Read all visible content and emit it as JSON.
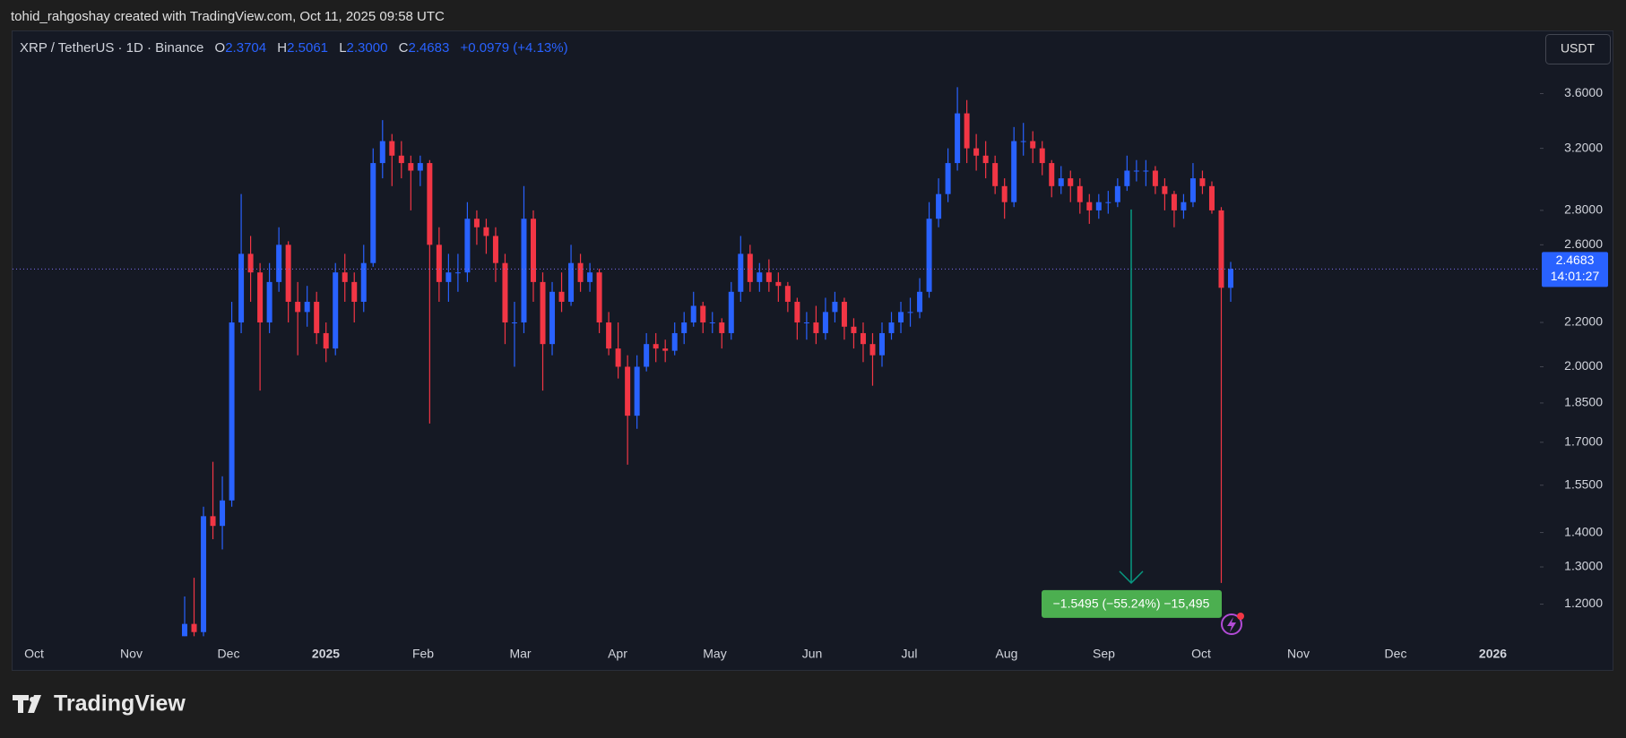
{
  "header": {
    "author_line": "tohid_rahgoshay created with TradingView.com, Oct 11, 2025 09:58 UTC"
  },
  "legend": {
    "symbol": "XRP / TetherUS · 1D · Binance",
    "ohlc": [
      {
        "label": "O",
        "value": "2.3704"
      },
      {
        "label": "H",
        "value": "2.5061"
      },
      {
        "label": "L",
        "value": "2.3000"
      },
      {
        "label": "C",
        "value": "2.4683"
      }
    ],
    "change": "+0.0979 (+4.13%)"
  },
  "currency_button": "USDT",
  "countdown": "14:01:27",
  "footer": {
    "logo": "TradingView"
  },
  "chart_data": {
    "type": "candlestick",
    "log_scale": true,
    "up_color": "#2962ff",
    "down_color": "#f23645",
    "last_price_line": true,
    "x_labels": [
      "Oct",
      "Nov",
      "Dec",
      "2025",
      "Feb",
      "Mar",
      "Apr",
      "May",
      "Jun",
      "Jul",
      "Aug",
      "Sep",
      "Oct",
      "Nov",
      "Dec",
      "2026"
    ],
    "ylim": [
      1.11,
      4.1
    ],
    "yticks": [
      {
        "value": 3.6,
        "label": "3.6000"
      },
      {
        "value": 3.2,
        "label": "3.2000"
      },
      {
        "value": 2.8,
        "label": "2.8000"
      },
      {
        "value": 2.6,
        "label": "2.6000"
      },
      {
        "value": 2.2,
        "label": "2.2000"
      },
      {
        "value": 2,
        "label": "2.0000"
      },
      {
        "value": 1.85,
        "label": "1.8500"
      },
      {
        "value": 1.7,
        "label": "1.7000"
      },
      {
        "value": 1.55,
        "label": "1.5500"
      },
      {
        "value": 1.4,
        "label": "1.4000"
      },
      {
        "value": 1.3,
        "label": "1.3000"
      },
      {
        "value": 1.2,
        "label": "1.2000"
      }
    ],
    "measure": {
      "from": 2.8055,
      "to": 1.256,
      "label": "−1.5495 (−55.24%) −15,495",
      "color": "#089981",
      "label_color": "#4caf50"
    },
    "candles": [
      [
        1.12,
        1.22,
        1.12,
        1.15
      ],
      [
        1.15,
        1.27,
        1.12,
        1.13
      ],
      [
        1.13,
        1.48,
        1.12,
        1.45
      ],
      [
        1.45,
        1.63,
        1.38,
        1.42
      ],
      [
        1.42,
        1.58,
        1.35,
        1.5
      ],
      [
        1.5,
        2.3,
        1.48,
        2.2
      ],
      [
        2.2,
        2.9,
        2.15,
        2.55
      ],
      [
        2.55,
        2.65,
        2.3,
        2.45
      ],
      [
        2.45,
        2.5,
        1.9,
        2.2
      ],
      [
        2.2,
        2.5,
        2.15,
        2.4
      ],
      [
        2.4,
        2.7,
        2.35,
        2.6
      ],
      [
        2.6,
        2.62,
        2.2,
        2.3
      ],
      [
        2.3,
        2.4,
        2.05,
        2.25
      ],
      [
        2.25,
        2.38,
        2.18,
        2.3
      ],
      [
        2.3,
        2.35,
        2.1,
        2.15
      ],
      [
        2.15,
        2.2,
        2.02,
        2.08
      ],
      [
        2.08,
        2.5,
        2.05,
        2.45
      ],
      [
        2.45,
        2.55,
        2.3,
        2.4
      ],
      [
        2.4,
        2.45,
        2.2,
        2.3
      ],
      [
        2.3,
        2.6,
        2.25,
        2.5
      ],
      [
        2.5,
        3.2,
        2.48,
        3.1
      ],
      [
        3.1,
        3.4,
        3.0,
        3.25
      ],
      [
        3.25,
        3.3,
        2.95,
        3.15
      ],
      [
        3.15,
        3.25,
        3.0,
        3.1
      ],
      [
        3.1,
        3.15,
        2.8,
        3.05
      ],
      [
        3.05,
        3.15,
        2.95,
        3.1
      ],
      [
        3.1,
        3.12,
        1.77,
        2.6
      ],
      [
        2.6,
        2.7,
        2.3,
        2.4
      ],
      [
        2.4,
        2.55,
        2.3,
        2.45
      ],
      [
        2.45,
        2.55,
        2.35,
        2.45
      ],
      [
        2.45,
        2.85,
        2.4,
        2.75
      ],
      [
        2.75,
        2.8,
        2.6,
        2.7
      ],
      [
        2.7,
        2.75,
        2.55,
        2.65
      ],
      [
        2.65,
        2.7,
        2.4,
        2.5
      ],
      [
        2.5,
        2.55,
        2.1,
        2.2
      ],
      [
        2.2,
        2.3,
        2.0,
        2.2
      ],
      [
        2.2,
        2.95,
        2.15,
        2.75
      ],
      [
        2.75,
        2.8,
        2.3,
        2.4
      ],
      [
        2.4,
        2.45,
        1.9,
        2.1
      ],
      [
        2.1,
        2.4,
        2.05,
        2.35
      ],
      [
        2.35,
        2.45,
        2.25,
        2.3
      ],
      [
        2.3,
        2.6,
        2.28,
        2.5
      ],
      [
        2.5,
        2.55,
        2.35,
        2.4
      ],
      [
        2.4,
        2.5,
        2.35,
        2.45
      ],
      [
        2.45,
        2.47,
        2.15,
        2.2
      ],
      [
        2.2,
        2.25,
        2.05,
        2.08
      ],
      [
        2.08,
        2.2,
        1.95,
        2.0
      ],
      [
        2.0,
        2.05,
        1.62,
        1.8
      ],
      [
        1.8,
        2.05,
        1.75,
        2.0
      ],
      [
        2.0,
        2.15,
        1.98,
        2.1
      ],
      [
        2.1,
        2.15,
        2.02,
        2.08
      ],
      [
        2.08,
        2.12,
        2.02,
        2.07
      ],
      [
        2.07,
        2.2,
        2.05,
        2.15
      ],
      [
        2.15,
        2.25,
        2.1,
        2.2
      ],
      [
        2.2,
        2.35,
        2.18,
        2.28
      ],
      [
        2.28,
        2.3,
        2.15,
        2.2
      ],
      [
        2.2,
        2.25,
        2.15,
        2.2
      ],
      [
        2.2,
        2.22,
        2.08,
        2.15
      ],
      [
        2.15,
        2.4,
        2.12,
        2.35
      ],
      [
        2.35,
        2.65,
        2.3,
        2.55
      ],
      [
        2.55,
        2.6,
        2.35,
        2.4
      ],
      [
        2.4,
        2.5,
        2.35,
        2.45
      ],
      [
        2.45,
        2.52,
        2.35,
        2.4
      ],
      [
        2.4,
        2.45,
        2.3,
        2.38
      ],
      [
        2.38,
        2.4,
        2.25,
        2.3
      ],
      [
        2.3,
        2.32,
        2.12,
        2.2
      ],
      [
        2.2,
        2.25,
        2.12,
        2.2
      ],
      [
        2.2,
        2.28,
        2.1,
        2.15
      ],
      [
        2.15,
        2.32,
        2.12,
        2.25
      ],
      [
        2.25,
        2.35,
        2.2,
        2.3
      ],
      [
        2.3,
        2.32,
        2.12,
        2.18
      ],
      [
        2.18,
        2.22,
        2.08,
        2.15
      ],
      [
        2.15,
        2.2,
        2.02,
        2.1
      ],
      [
        2.1,
        2.15,
        1.92,
        2.05
      ],
      [
        2.05,
        2.2,
        2.0,
        2.15
      ],
      [
        2.15,
        2.25,
        2.12,
        2.2
      ],
      [
        2.2,
        2.3,
        2.15,
        2.25
      ],
      [
        2.25,
        2.32,
        2.18,
        2.25
      ],
      [
        2.25,
        2.42,
        2.22,
        2.35
      ],
      [
        2.35,
        2.85,
        2.32,
        2.75
      ],
      [
        2.75,
        3.0,
        2.7,
        2.9
      ],
      [
        2.9,
        3.2,
        2.85,
        3.1
      ],
      [
        3.1,
        3.65,
        3.05,
        3.45
      ],
      [
        3.45,
        3.55,
        3.1,
        3.2
      ],
      [
        3.2,
        3.3,
        3.05,
        3.15
      ],
      [
        3.15,
        3.25,
        3.0,
        3.1
      ],
      [
        3.1,
        3.15,
        2.9,
        2.95
      ],
      [
        2.95,
        3.0,
        2.75,
        2.85
      ],
      [
        2.85,
        3.35,
        2.82,
        3.25
      ],
      [
        3.25,
        3.38,
        3.15,
        3.25
      ],
      [
        3.25,
        3.32,
        3.1,
        3.2
      ],
      [
        3.2,
        3.25,
        3.02,
        3.1
      ],
      [
        3.1,
        3.12,
        2.88,
        2.95
      ],
      [
        2.95,
        3.08,
        2.9,
        3.0
      ],
      [
        3.0,
        3.05,
        2.85,
        2.95
      ],
      [
        2.95,
        3.0,
        2.78,
        2.85
      ],
      [
        2.85,
        2.9,
        2.72,
        2.8
      ],
      [
        2.8,
        2.9,
        2.75,
        2.85
      ],
      [
        2.85,
        2.92,
        2.78,
        2.85
      ],
      [
        2.85,
        3.0,
        2.82,
        2.95
      ],
      [
        2.95,
        3.15,
        2.92,
        3.05
      ],
      [
        3.05,
        3.12,
        2.98,
        3.05
      ],
      [
        3.05,
        3.12,
        2.95,
        3.05
      ],
      [
        3.05,
        3.08,
        2.9,
        2.95
      ],
      [
        2.95,
        3.0,
        2.8,
        2.9
      ],
      [
        2.9,
        2.92,
        2.7,
        2.8
      ],
      [
        2.8,
        2.9,
        2.75,
        2.85
      ],
      [
        2.85,
        3.1,
        2.82,
        3.0
      ],
      [
        3.0,
        3.05,
        2.9,
        2.95
      ],
      [
        2.95,
        2.98,
        2.78,
        2.8
      ],
      [
        2.8,
        2.82,
        1.256,
        2.3704
      ],
      [
        2.3704,
        2.5061,
        2.3,
        2.4683
      ]
    ]
  }
}
